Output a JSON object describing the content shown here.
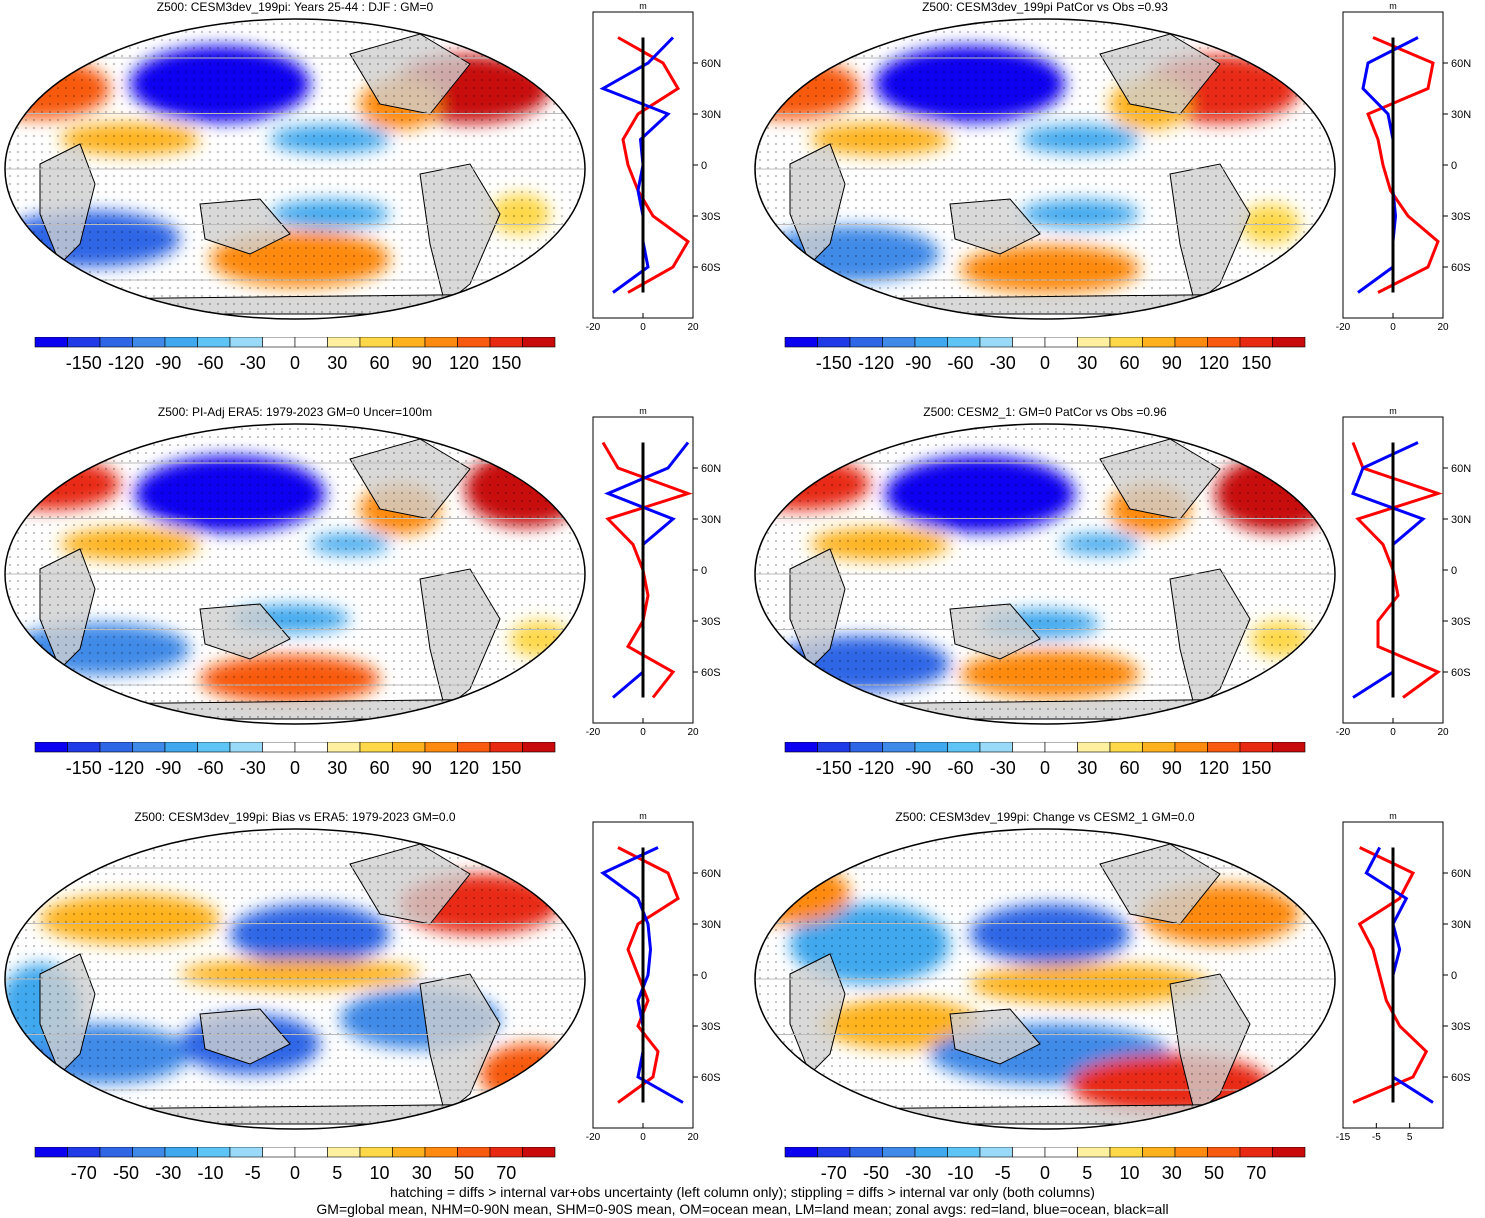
{
  "palette": [
    "#0b00f0",
    "#1f3be8",
    "#2f66e6",
    "#3f8ae8",
    "#40a8ee",
    "#5ec4f5",
    "#98daf8",
    "#ffffff",
    "#ffffff",
    "#fff0a0",
    "#ffd84a",
    "#ffb21e",
    "#ff8a10",
    "#f85a10",
    "#e82a12",
    "#c80a0a"
  ],
  "panels": [
    {
      "title": "Z500: CESM3dev_199pi: Years 25-44 : DJF : GM=0",
      "cbar_labels": [
        "-150",
        "-120",
        "-90",
        "-60",
        "-30",
        "0",
        "30",
        "60",
        "90",
        "120",
        "150"
      ],
      "zonal_xticks": [
        "-20",
        "0",
        "20"
      ]
    },
    {
      "title": "Z500: CESM3dev_199pi PatCor vs Obs =0.93",
      "cbar_labels": [
        "-150",
        "-120",
        "-90",
        "-60",
        "-30",
        "0",
        "30",
        "60",
        "90",
        "120",
        "150"
      ],
      "zonal_xticks": [
        "-20",
        "0",
        "20"
      ]
    },
    {
      "title": "Z500: PI-Adj ERA5: 1979-2023 GM=0 Uncer=100m",
      "cbar_labels": [
        "-150",
        "-120",
        "-90",
        "-60",
        "-30",
        "0",
        "30",
        "60",
        "90",
        "120",
        "150"
      ],
      "zonal_xticks": [
        "-20",
        "0",
        "20"
      ]
    },
    {
      "title": "Z500: CESM2_1: GM=0 PatCor vs Obs =0.96",
      "cbar_labels": [
        "-150",
        "-120",
        "-90",
        "-60",
        "-30",
        "0",
        "30",
        "60",
        "90",
        "120",
        "150"
      ],
      "zonal_xticks": [
        "-20",
        "0",
        "20"
      ]
    },
    {
      "title": "Z500: CESM3dev_199pi: Bias vs ERA5: 1979-2023 GM=0.0",
      "cbar_labels": [
        "-70",
        "-50",
        "-30",
        "-10",
        "-5",
        "0",
        "5",
        "10",
        "30",
        "50",
        "70"
      ],
      "zonal_xticks": [
        "-20",
        "0",
        "20"
      ]
    },
    {
      "title": "Z500: CESM3dev_199pi: Change vs CESM2_1 GM=0.0",
      "cbar_labels": [
        "-70",
        "-50",
        "-30",
        "-10",
        "-5",
        "0",
        "5",
        "10",
        "30",
        "50",
        "70"
      ],
      "zonal_xticks": [
        "-15",
        "-5",
        "5"
      ]
    }
  ],
  "zonal_unit": "m",
  "lat_labels": [
    "60N",
    "30N",
    "0",
    "30S",
    "60S"
  ],
  "footnote": {
    "line1": "hatching = diffs > internal var+obs uncertainty (left column only); stippling = diffs > internal var only (both columns)",
    "line2": "GM=global mean, NHM=0-90N mean, SHM=0-90S mean, OM=ocean mean, LM=land mean; zonal avgs: red=land, blue=ocean, black=all"
  },
  "chart_data": [
    {
      "type": "heatmap",
      "title": "Z500: CESM3dev_199pi: Years 25-44 : DJF : GM=0",
      "colorbar": [
        -150,
        -120,
        -90,
        -60,
        -30,
        0,
        30,
        60,
        90,
        120,
        150
      ],
      "zonal_mean": {
        "xlim": [
          -20,
          20
        ],
        "ylim": [
          -90,
          90
        ],
        "lat": [
          75,
          60,
          45,
          30,
          15,
          0,
          -15,
          -30,
          -45,
          -60,
          -75
        ],
        "land": [
          -10,
          8,
          14,
          -2,
          -8,
          -6,
          -2,
          4,
          18,
          12,
          -6
        ],
        "ocean": [
          12,
          2,
          -16,
          10,
          -1,
          0,
          -2,
          0,
          0,
          2,
          -12
        ],
        "all": [
          0,
          0,
          0,
          0,
          0,
          0,
          0,
          0,
          0,
          0,
          0
        ]
      }
    },
    {
      "type": "heatmap",
      "title": "Z500: CESM3dev_199pi PatCor vs Obs =0.93",
      "colorbar": [
        -150,
        -120,
        -90,
        -60,
        -30,
        0,
        30,
        60,
        90,
        120,
        150
      ],
      "zonal_mean": {
        "xlim": [
          -20,
          20
        ],
        "ylim": [
          -90,
          90
        ],
        "lat": [
          75,
          60,
          45,
          30,
          15,
          0,
          -15,
          -30,
          -45,
          -60,
          -75
        ],
        "land": [
          -8,
          16,
          14,
          -10,
          -6,
          -4,
          -1,
          6,
          18,
          14,
          -6
        ],
        "ocean": [
          10,
          -10,
          -12,
          -2,
          0,
          0,
          0,
          1,
          0,
          0,
          -14
        ],
        "all": [
          0,
          0,
          0,
          0,
          0,
          0,
          0,
          0,
          0,
          0,
          0
        ]
      }
    },
    {
      "type": "heatmap",
      "title": "Z500: PI-Adj ERA5: 1979-2023 GM=0 Uncer=100m",
      "colorbar": [
        -150,
        -120,
        -90,
        -60,
        -30,
        0,
        30,
        60,
        90,
        120,
        150
      ],
      "zonal_mean": {
        "xlim": [
          -20,
          20
        ],
        "ylim": [
          -90,
          90
        ],
        "lat": [
          75,
          60,
          45,
          30,
          15,
          0,
          -15,
          -30,
          -45,
          -60,
          -75
        ],
        "land": [
          -16,
          -10,
          18,
          -14,
          -4,
          0,
          2,
          0,
          -6,
          12,
          4
        ],
        "ocean": [
          18,
          10,
          -14,
          12,
          0,
          0,
          0,
          0,
          0,
          0,
          -12
        ],
        "all": [
          0,
          0,
          0,
          0,
          0,
          0,
          0,
          0,
          0,
          0,
          0
        ]
      }
    },
    {
      "type": "heatmap",
      "title": "Z500: CESM2_1: GM=0 PatCor vs Obs =0.96",
      "colorbar": [
        -150,
        -120,
        -90,
        -60,
        -30,
        0,
        30,
        60,
        90,
        120,
        150
      ],
      "zonal_mean": {
        "xlim": [
          -20,
          20
        ],
        "ylim": [
          -90,
          90
        ],
        "lat": [
          75,
          60,
          45,
          30,
          15,
          0,
          -15,
          -30,
          -45,
          -60,
          -75
        ],
        "land": [
          -16,
          -12,
          18,
          -14,
          -4,
          0,
          2,
          -6,
          -6,
          18,
          4
        ],
        "ocean": [
          10,
          -12,
          -16,
          12,
          0,
          0,
          0,
          0,
          0,
          0,
          -16
        ],
        "all": [
          0,
          0,
          0,
          0,
          0,
          0,
          0,
          0,
          0,
          0,
          0
        ]
      }
    },
    {
      "type": "heatmap",
      "title": "Z500: CESM3dev_199pi: Bias vs ERA5: 1979-2023 GM=0.0",
      "colorbar": [
        -70,
        -50,
        -30,
        -10,
        -5,
        0,
        5,
        10,
        30,
        50,
        70
      ],
      "zonal_mean": {
        "xlim": [
          -20,
          20
        ],
        "ylim": [
          -90,
          90
        ],
        "lat": [
          75,
          60,
          45,
          30,
          15,
          0,
          -15,
          -30,
          -45,
          -60,
          -75
        ],
        "land": [
          -10,
          10,
          14,
          -2,
          -6,
          -2,
          2,
          -2,
          6,
          4,
          -10
        ],
        "ocean": [
          6,
          -16,
          -2,
          2,
          3,
          2,
          -2,
          0,
          0,
          -2,
          16
        ],
        "all": [
          0,
          0,
          0,
          0,
          0,
          0,
          0,
          0,
          0,
          0,
          0
        ]
      }
    },
    {
      "type": "heatmap",
      "title": "Z500: CESM3dev_199pi: Change vs CESM2_1 GM=0.0",
      "colorbar": [
        -70,
        -50,
        -30,
        -10,
        -5,
        0,
        5,
        10,
        30,
        50,
        70
      ],
      "zonal_mean": {
        "xlim": [
          -15,
          15
        ],
        "ylim": [
          -90,
          90
        ],
        "lat": [
          75,
          60,
          45,
          30,
          15,
          0,
          -15,
          -30,
          -45,
          -60,
          -75
        ],
        "land": [
          -10,
          6,
          2,
          -10,
          -6,
          -4,
          -2,
          2,
          10,
          6,
          -12
        ],
        "ocean": [
          -4,
          -8,
          4,
          0,
          2,
          0,
          0,
          0,
          0,
          0,
          12
        ],
        "all": [
          0,
          0,
          0,
          0,
          0,
          0,
          0,
          0,
          0,
          0,
          0
        ]
      }
    }
  ]
}
